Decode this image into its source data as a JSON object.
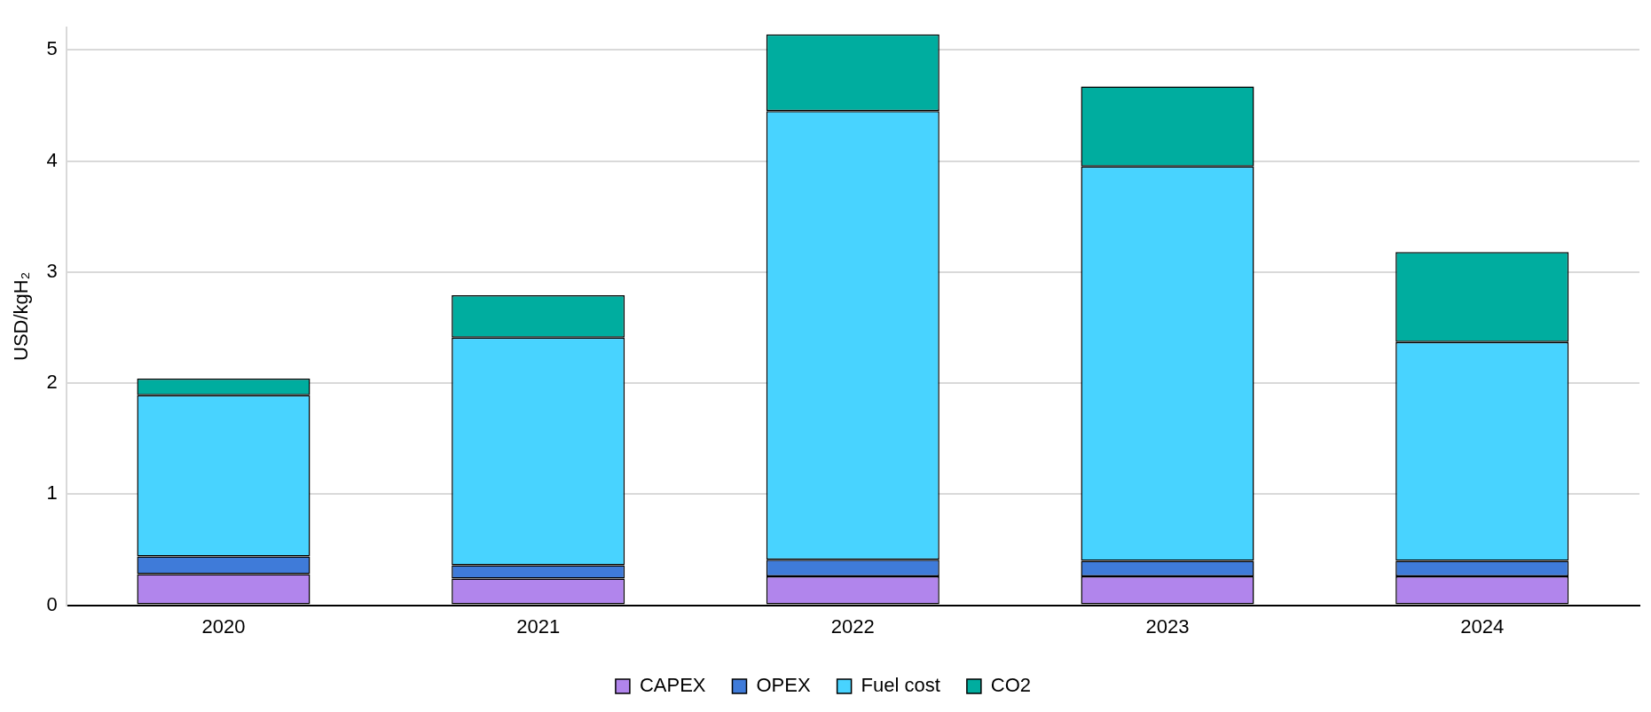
{
  "chart_data": {
    "type": "bar",
    "ylabel": "USD/kgH₂",
    "categories": [
      "2020",
      "2021",
      "2022",
      "2023",
      "2024"
    ],
    "stacked": true,
    "ylim": [
      0,
      5.2
    ],
    "yticks": [
      0,
      1,
      2,
      3,
      4,
      5
    ],
    "grid": "y",
    "legend": "bottom",
    "series": [
      {
        "name": "CAPEX",
        "color": "#b185ec",
        "values": [
          0.28,
          0.24,
          0.26,
          0.26,
          0.26
        ]
      },
      {
        "name": "OPEX",
        "color": "#3f7bd9",
        "values": [
          0.16,
          0.12,
          0.15,
          0.14,
          0.14
        ]
      },
      {
        "name": "Fuel cost",
        "color": "#48d3ff",
        "values": [
          1.45,
          2.05,
          4.04,
          3.55,
          1.97
        ]
      },
      {
        "name": "CO2",
        "color": "#00ad9f",
        "values": [
          0.15,
          0.38,
          0.69,
          0.72,
          0.81
        ]
      }
    ]
  }
}
